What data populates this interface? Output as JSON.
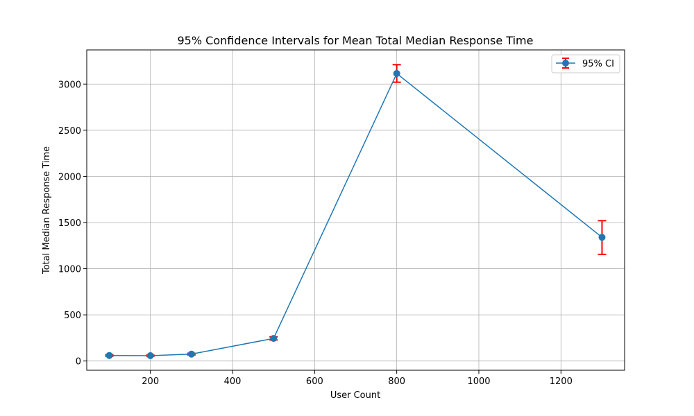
{
  "chart_data": {
    "type": "line",
    "title": "95% Confidence Intervals for Mean Total Median Response Time",
    "xlabel": "User Count",
    "ylabel": "Total Median Response Time",
    "xlim": [
      45,
      1355
    ],
    "ylim": [
      -100,
      3370
    ],
    "xticks": [
      200,
      400,
      600,
      800,
      1000,
      1200
    ],
    "yticks": [
      0,
      500,
      1000,
      1500,
      2000,
      2500,
      3000
    ],
    "grid": true,
    "legend_position": "top-right",
    "series": [
      {
        "name": "95% CI",
        "color": "#1f77b4",
        "error_color": "#ff0000",
        "points": [
          {
            "x": 100,
            "y": 60,
            "lower": 52,
            "upper": 68
          },
          {
            "x": 200,
            "y": 58,
            "lower": 52,
            "upper": 64
          },
          {
            "x": 300,
            "y": 75,
            "lower": 66,
            "upper": 84
          },
          {
            "x": 500,
            "y": 245,
            "lower": 228,
            "upper": 262
          },
          {
            "x": 800,
            "y": 3115,
            "lower": 3020,
            "upper": 3210
          },
          {
            "x": 1300,
            "y": 1340,
            "lower": 1155,
            "upper": 1520
          }
        ]
      }
    ]
  }
}
